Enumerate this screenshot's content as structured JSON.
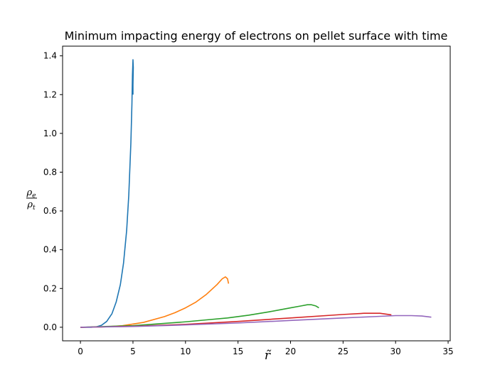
{
  "chart_data": {
    "type": "line",
    "title": "Minimum impacting energy of electrons on pellet surface with time",
    "xlabel": "r̃",
    "ylabel": {
      "numerator": "ρe",
      "denominator": "ρt"
    },
    "xlim": [
      -1.7,
      35.2
    ],
    "ylim": [
      -0.07,
      1.45
    ],
    "xticks": [
      0,
      5,
      10,
      15,
      20,
      25,
      30,
      35
    ],
    "xtick_labels": [
      "0",
      "5",
      "10",
      "15",
      "20",
      "25",
      "30",
      "35"
    ],
    "yticks": [
      0.0,
      0.2,
      0.4,
      0.6,
      0.8,
      1.0,
      1.2,
      1.4
    ],
    "ytick_labels": [
      "0.0",
      "0.2",
      "0.4",
      "0.6",
      "0.8",
      "1.0",
      "1.2",
      "1.4"
    ],
    "grid": false,
    "series": [
      {
        "color": "#1f77b4",
        "x": [
          0,
          1.0,
          1.5,
          2.0,
          2.5,
          3.0,
          3.4,
          3.8,
          4.1,
          4.4,
          4.6,
          4.8,
          4.9,
          4.95,
          5.0,
          5.03,
          5.0,
          5.0
        ],
        "y": [
          0,
          0.0,
          0.002,
          0.01,
          0.03,
          0.07,
          0.13,
          0.22,
          0.33,
          0.5,
          0.68,
          0.95,
          1.15,
          1.3,
          1.38,
          1.34,
          1.25,
          1.2
        ]
      },
      {
        "color": "#ff7f0e",
        "x": [
          0,
          2,
          4,
          6,
          8,
          9,
          10,
          11,
          12,
          13,
          13.5,
          13.8,
          14.0,
          14.1
        ],
        "y": [
          0,
          0.001,
          0.008,
          0.025,
          0.055,
          0.075,
          0.1,
          0.13,
          0.17,
          0.22,
          0.25,
          0.26,
          0.25,
          0.225
        ]
      },
      {
        "color": "#2ca02c",
        "x": [
          0,
          5,
          8,
          10,
          12,
          14,
          16,
          18,
          20,
          21,
          21.6,
          22.0,
          22.4,
          22.7
        ],
        "y": [
          0,
          0.008,
          0.02,
          0.028,
          0.038,
          0.048,
          0.062,
          0.08,
          0.1,
          0.11,
          0.116,
          0.116,
          0.11,
          0.1
        ]
      },
      {
        "color": "#d62728",
        "x": [
          0,
          5,
          10,
          15,
          20,
          25,
          27,
          28.5,
          29.6
        ],
        "y": [
          0,
          0.005,
          0.015,
          0.03,
          0.048,
          0.066,
          0.072,
          0.072,
          0.064
        ]
      },
      {
        "color": "#9467bd",
        "x": [
          0,
          5,
          10,
          15,
          20,
          25,
          28,
          30,
          31.5,
          32.5,
          33.4
        ],
        "y": [
          0,
          0.004,
          0.012,
          0.022,
          0.035,
          0.048,
          0.055,
          0.06,
          0.06,
          0.058,
          0.052
        ]
      }
    ]
  }
}
